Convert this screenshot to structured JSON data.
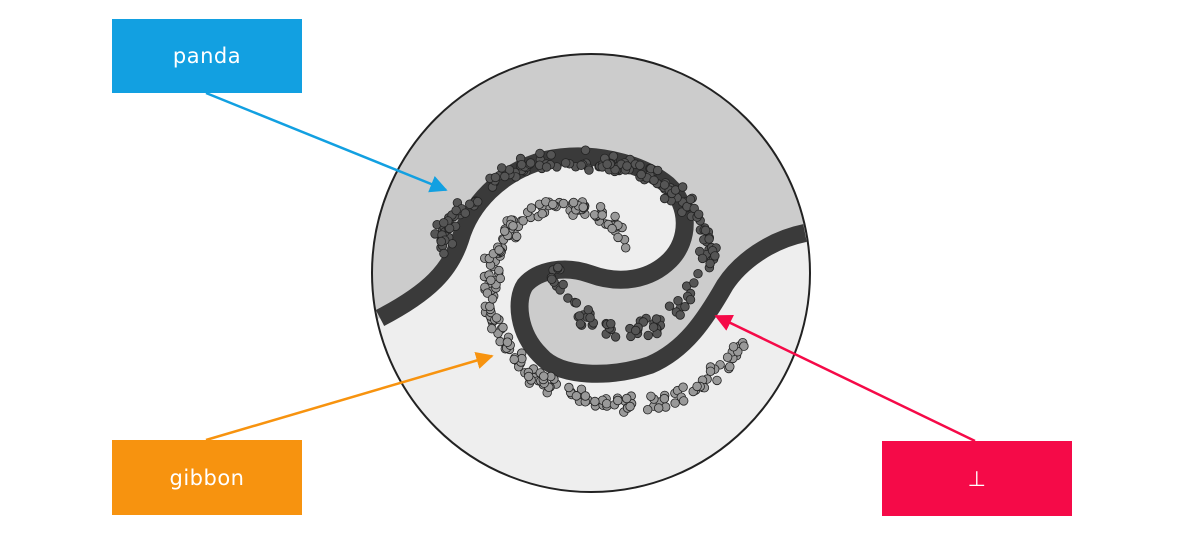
{
  "labels": {
    "panda": "panda",
    "gibbon": "gibbon",
    "perp": "⊥"
  },
  "colors": {
    "panda": "#12a0e1",
    "gibbon": "#f7930f",
    "perp": "#f50a48",
    "panda_region": "#cccccc",
    "gibbon_region": "#eeeeee",
    "boundary": "#3a3a3a",
    "outline": "#222222"
  }
}
